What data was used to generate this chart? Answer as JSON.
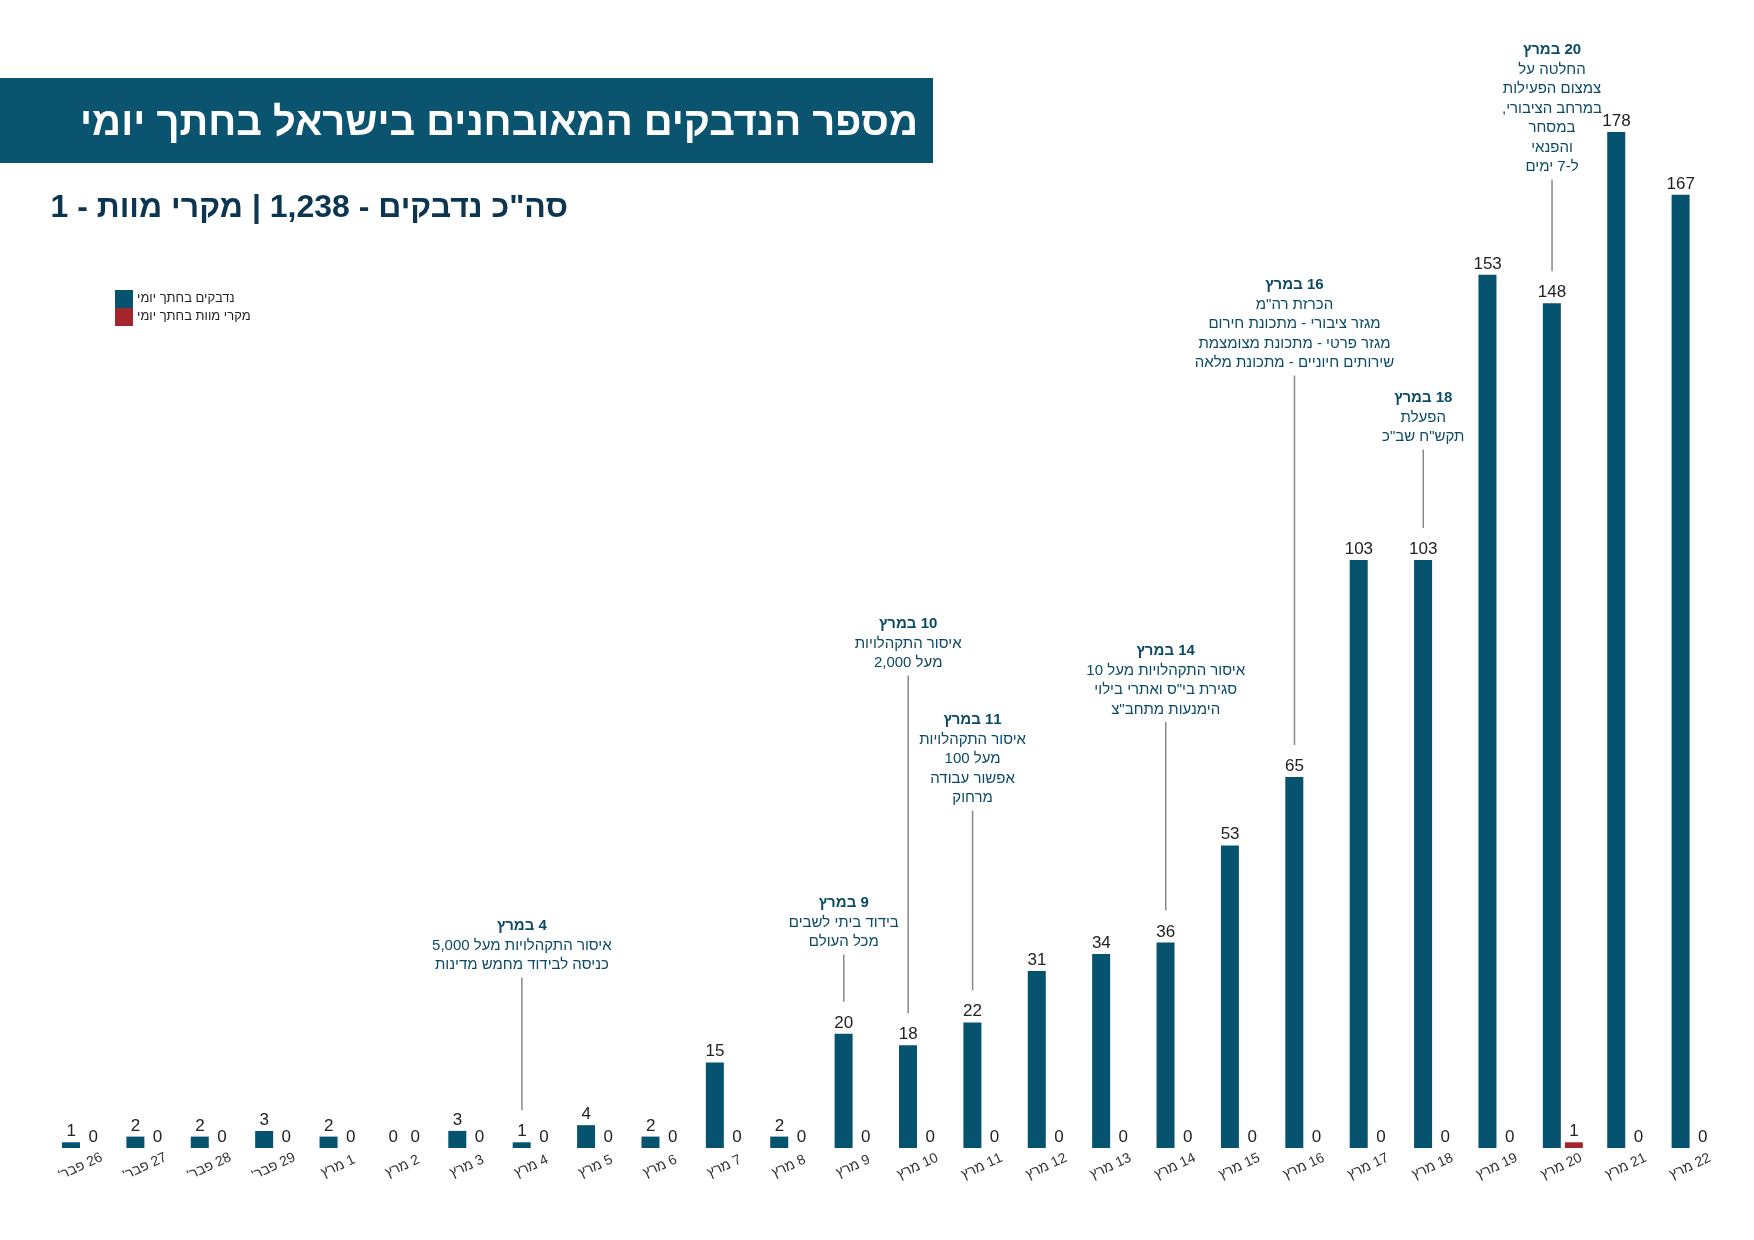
{
  "chart_data": {
    "type": "bar",
    "title": "מספר הנדבקים המאובחנים בישראל בחתך יומי",
    "subtitle": "סה\"כ נדבקים - 1,238 | מקרי מוות - 1",
    "categories": [
      "26 פבר'",
      "27 פבר'",
      "28 פבר'",
      "29 פבר'",
      "1 מרץ",
      "2 מרץ",
      "3 מרץ",
      "4 מרץ",
      "5 מרץ",
      "6 מרץ",
      "7 מרץ",
      "8 מרץ",
      "9 מרץ",
      "10 מרץ",
      "11 מרץ",
      "12 מרץ",
      "13 מרץ",
      "14 מרץ",
      "15 מרץ",
      "16 מרץ",
      "17 מרץ",
      "18 מרץ",
      "19 מרץ",
      "20 מרץ",
      "21 מרץ",
      "22 מרץ"
    ],
    "series": [
      {
        "name": "נדבקים בחתך יומי",
        "color": "#06536f",
        "values": [
          1,
          2,
          2,
          3,
          2,
          0,
          3,
          1,
          4,
          2,
          15,
          2,
          20,
          18,
          22,
          31,
          34,
          36,
          53,
          65,
          103,
          103,
          153,
          148,
          178,
          167
        ]
      },
      {
        "name": "מקרי מוות בחתך יומי",
        "color": "#a4262c",
        "values": [
          0,
          0,
          0,
          0,
          0,
          0,
          0,
          0,
          0,
          0,
          0,
          0,
          0,
          0,
          0,
          0,
          0,
          0,
          0,
          0,
          0,
          0,
          0,
          1,
          0,
          0
        ]
      }
    ],
    "data_labels": true,
    "legend": "top left",
    "annotations": [
      "4 במרץ\nאיסור התקהלויות מעל 5,000\nכניסה לבידוד מחמש מדינות",
      "9 במרץ\nבידוד ביתי לשבים\nמכל העולם",
      "10 במרץ\nאיסור התקהלויות\nמעל 2,000",
      "11 במרץ\nאיסור התקהלויות\nמעל 100\nאפשור עבודה\nמרחוק",
      "14 במרץ\nאיסור התקהלויות מעל 10\nסגירת בי\"ס ואתרי בילוי\nהימנעות מתחב\"צ",
      "16 במרץ\nהכרזת רה\"מ\nמגזר ציבורי - מתכונת חירום\nמגזר פרטי - מתכונת מצומצמת\nשירותים חיוניים - מתכונת מלאה",
      "18 במרץ\nהפעלת\nתקש\"ח שב\"כ",
      "20 במרץ\nהחלטה על\nצמצום הפעילות\nבמרחב הציבורי,\nבמסחר\nוהפנאי\nל-7 ימים"
    ]
  }
}
